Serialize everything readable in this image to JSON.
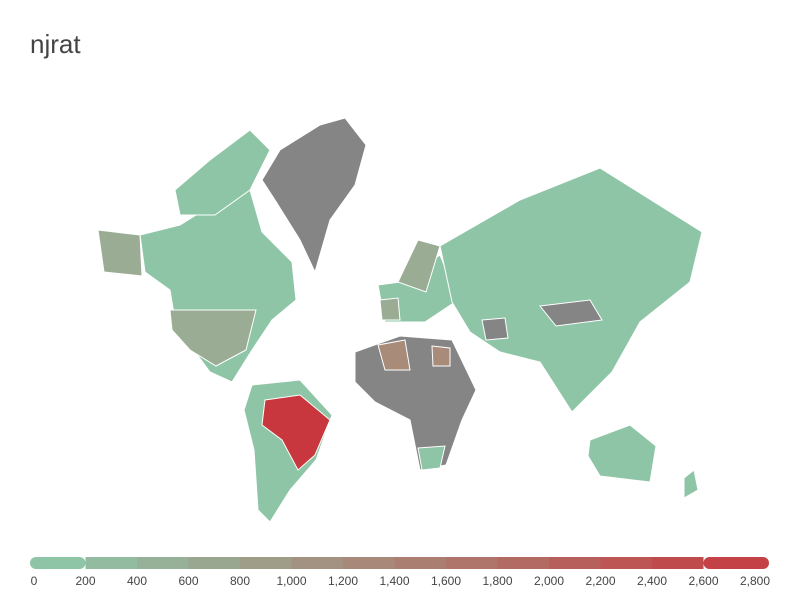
{
  "title": "njrat",
  "legend": {
    "scale": [
      0,
      2800
    ],
    "colors": [
      "#8ec5a6",
      "#c8373d"
    ],
    "ticks": [
      0,
      200,
      400,
      600,
      800,
      {
        "value": 1000,
        "label": "1,000"
      },
      {
        "value": 1200,
        "label": "1,200"
      },
      {
        "value": 1400,
        "label": "1,400"
      },
      {
        "value": 1600,
        "label": "1,600"
      },
      {
        "value": 1800,
        "label": "1,800"
      },
      {
        "value": 2000,
        "label": "2,000"
      },
      {
        "value": 2200,
        "label": "2,200"
      },
      {
        "value": 2400,
        "label": "2,400"
      },
      {
        "value": 2600,
        "label": "2,600"
      },
      {
        "value": 2800,
        "label": "2,800"
      }
    ]
  }
}
